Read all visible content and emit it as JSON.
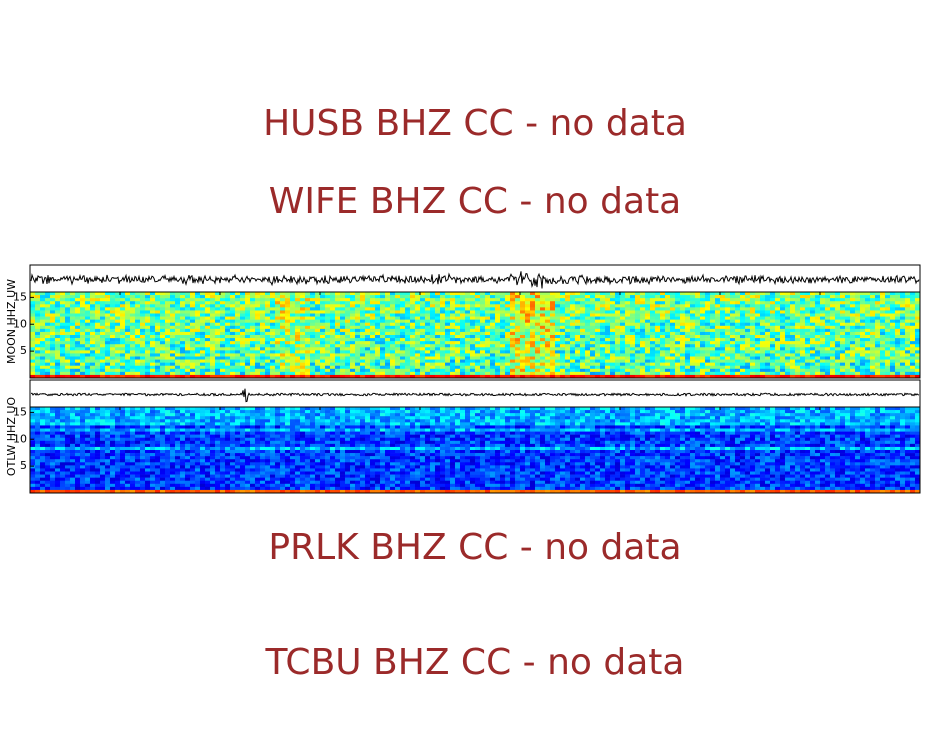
{
  "chart_data": [
    {
      "type": "message",
      "title": "HUSB BHZ CC - no data"
    },
    {
      "type": "message",
      "title": "WIFE BHZ CC - no data"
    },
    {
      "type": "spectrogram",
      "ylabel": "MOON HHZ UW",
      "ylim": [
        0,
        16
      ],
      "yticks": [
        5,
        10,
        15
      ]
    },
    {
      "type": "spectrogram",
      "ylabel": "OTLW HHZ UO",
      "ylim": [
        0,
        16
      ],
      "yticks": [
        5,
        10,
        15
      ]
    },
    {
      "type": "message",
      "title": "PRLK BHZ CC - no data"
    },
    {
      "type": "message",
      "title": "TCBU BHZ CC - no data"
    }
  ]
}
